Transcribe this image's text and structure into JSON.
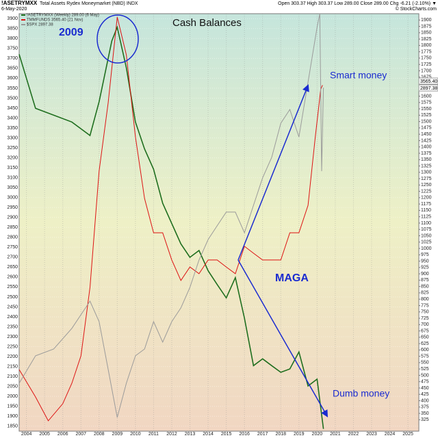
{
  "chart_data": {
    "type": "line",
    "header": {
      "symbol": "!ASETRYMXX",
      "description": "Total Assets Rydex Moneymarket (NBD) INDX",
      "date": "6-May-2020",
      "quote": "Open 303.37 High 303.37 Low 289.00 Close 289.00 Chg -6.21 (-2.10%) ▼",
      "credit": "© StockCharts.com"
    },
    "title": "Cash Balances",
    "annotations": [
      "2009",
      "Smart money",
      "MAGA",
      "Dumb money"
    ],
    "price_labels": [
      "3565.40",
      "2897.38"
    ],
    "xlim": [
      2003.6,
      2025.6
    ],
    "xticks": [
      2004,
      2005,
      2006,
      2007,
      2008,
      2009,
      2010,
      2011,
      2012,
      2013,
      2014,
      2015,
      2016,
      2017,
      2018,
      2019,
      2020,
      2021,
      2022,
      2023,
      2024,
      2025
    ],
    "ylim": [
      1825,
      3925
    ],
    "yticks": [
      1850,
      1900,
      1950,
      2000,
      2050,
      2100,
      2150,
      2200,
      2250,
      2300,
      2350,
      2400,
      2450,
      2500,
      2550,
      2600,
      2650,
      2700,
      2750,
      2800,
      2850,
      2900,
      2950,
      3000,
      3050,
      3100,
      3150,
      3200,
      3250,
      3300,
      3350,
      3400,
      3450,
      3500,
      3550,
      3600,
      3650,
      3700,
      3750,
      3800,
      3850,
      3900
    ],
    "y2lim": [
      280,
      1925
    ],
    "y2ticks": [
      325,
      350,
      375,
      400,
      425,
      450,
      475,
      500,
      525,
      550,
      575,
      600,
      625,
      650,
      675,
      700,
      725,
      750,
      775,
      800,
      825,
      850,
      875,
      900,
      925,
      950,
      975,
      1000,
      1025,
      1050,
      1075,
      1100,
      1125,
      1150,
      1175,
      1200,
      1225,
      1250,
      1275,
      1300,
      1325,
      1350,
      1375,
      1400,
      1425,
      1450,
      1475,
      1500,
      1525,
      1550,
      1575,
      1600,
      1625,
      1650,
      1675,
      1700,
      1725,
      1750,
      1775,
      1800,
      1825,
      1850,
      1875,
      1900
    ],
    "grid": true,
    "series": [
      {
        "name": "!ASETRYMXX (Weekly) 289.00 (6 May)",
        "color": "#1e6e1e",
        "axis": "y2",
        "x": [
          2003.6,
          2004.5,
          2005.5,
          2006.5,
          2007.5,
          2008.0,
          2008.7,
          2009.0,
          2009.5,
          2010.0,
          2010.5,
          2011.0,
          2011.5,
          2012.0,
          2012.5,
          2013.0,
          2013.5,
          2014.0,
          2014.5,
          2015.0,
          2015.5,
          2016.0,
          2016.5,
          2017.0,
          2017.5,
          2018.0,
          2018.5,
          2019.0,
          2019.5,
          2020.0,
          2020.35
        ],
        "values": [
          1765,
          1552,
          1525,
          1498,
          1445,
          1578,
          1818,
          1872,
          1712,
          1498,
          1392,
          1312,
          1178,
          1098,
          1018,
          965,
          992,
          912,
          858,
          805,
          885,
          725,
          538,
          565,
          538,
          512,
          525,
          592,
          458,
          485,
          289
        ]
      },
      {
        "name": "TMMFUNDS 3565.40 (21 Nov)",
        "color": "#dd1111",
        "x": [
          2003.6,
          2004.5,
          2005.2,
          2006.0,
          2006.5,
          2007.0,
          2007.5,
          2008.0,
          2008.5,
          2009.0,
          2009.5,
          2010.0,
          2010.5,
          2011.0,
          2011.5,
          2012.0,
          2012.5,
          2013.0,
          2013.5,
          2014.0,
          2014.5,
          2015.0,
          2015.5,
          2016.0,
          2016.5,
          2017.0,
          2017.5,
          2018.0,
          2018.5,
          2019.0,
          2019.5,
          2019.9,
          2020.2,
          2020.3
        ],
        "values": [
          2135,
          1997,
          1877,
          1963,
          2066,
          2204,
          2548,
          3133,
          3478,
          3908,
          3718,
          3305,
          2996,
          2823,
          2823,
          2686,
          2583,
          2651,
          2617,
          2686,
          2686,
          2651,
          2617,
          2755,
          2720,
          2686,
          2686,
          2686,
          2823,
          2823,
          2961,
          3305,
          3546,
          3565.4
        ]
      },
      {
        "name": "$SPX 2897.38",
        "color": "#9a9a9a",
        "x": [
          2003.6,
          2004.5,
          2005.5,
          2006.5,
          2007.5,
          2008.0,
          2008.5,
          2009.0,
          2009.5,
          2010.0,
          2010.5,
          2011.0,
          2011.5,
          2012.0,
          2012.5,
          2013.0,
          2013.5,
          2014.0,
          2014.5,
          2015.0,
          2015.5,
          2016.0,
          2016.5,
          2017.0,
          2017.5,
          2018.0,
          2018.5,
          2019.0,
          2019.5,
          2020.0,
          2020.15,
          2020.25,
          2020.35
        ],
        "values": [
          2066,
          2204,
          2238,
          2342,
          2479,
          2376,
          2135,
          1894,
          2066,
          2204,
          2238,
          2376,
          2273,
          2376,
          2445,
          2548,
          2686,
          2789,
          2858,
          2927,
          2927,
          2823,
          2961,
          3099,
          3202,
          3374,
          3443,
          3305,
          3581,
          3856,
          3925,
          3133,
          3553
        ]
      }
    ]
  }
}
